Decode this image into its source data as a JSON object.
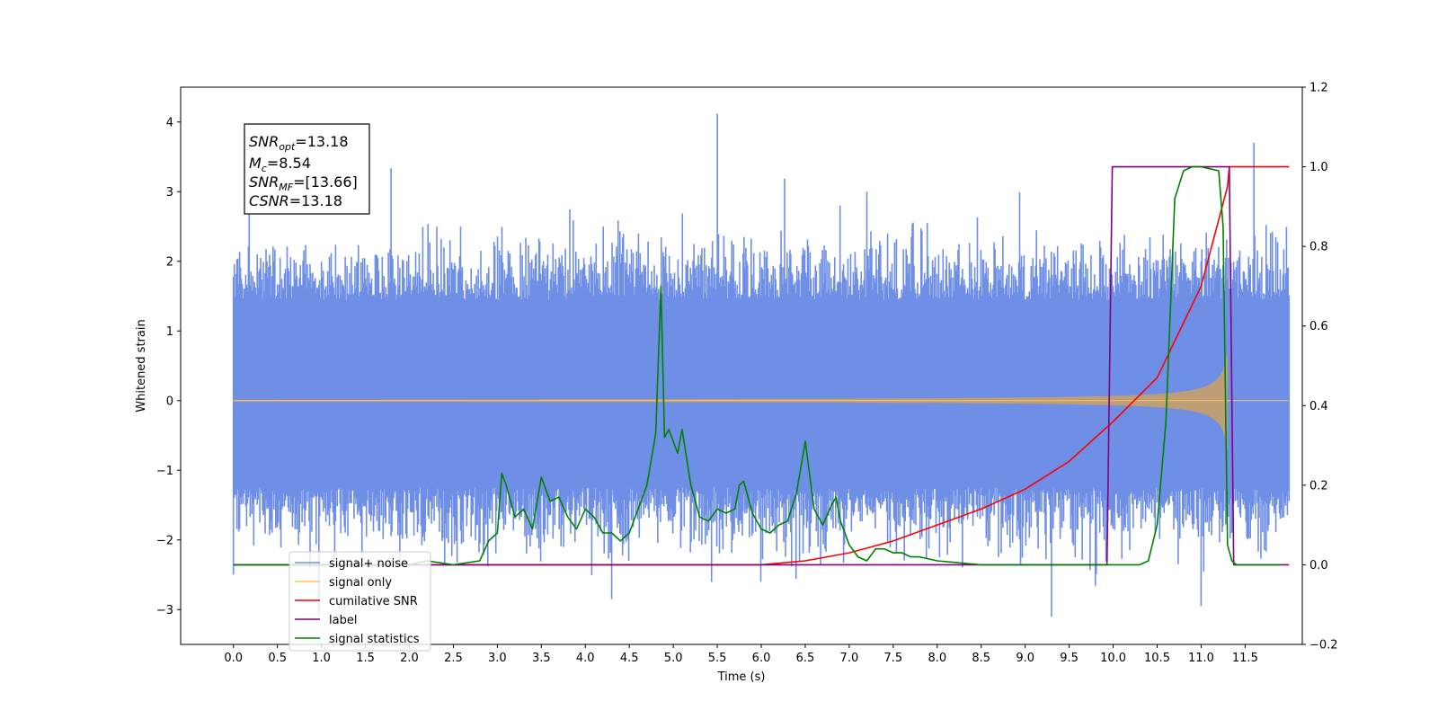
{
  "chart_data": {
    "type": "line",
    "xlabel": "Time (s)",
    "ylabel": "Whitened strain",
    "xlim": [
      -0.6,
      12.15
    ],
    "ylim": [
      -3.5,
      4.5
    ],
    "y2lim": [
      -0.2,
      1.2
    ],
    "x_ticks": [
      "0.0",
      "0.5",
      "1.0",
      "1.5",
      "2.0",
      "2.5",
      "3.0",
      "3.5",
      "4.0",
      "4.5",
      "5.0",
      "5.5",
      "6.0",
      "6.5",
      "7.0",
      "7.5",
      "8.0",
      "8.5",
      "9.0",
      "9.5",
      "10.0",
      "10.5",
      "11.0",
      "11.5"
    ],
    "y_ticks": [
      "4",
      "3",
      "2",
      "1",
      "0",
      "−1",
      "−2",
      "−3"
    ],
    "y2_ticks": [
      "1.2",
      "1.0",
      "0.8",
      "0.6",
      "0.4",
      "0.2",
      "0.0",
      "−0.2"
    ],
    "annotation": {
      "lines": [
        {
          "base": "SNR",
          "sub": "opt",
          "value": "=13.18"
        },
        {
          "base": "M",
          "sub": "c",
          "value": "=8.54"
        },
        {
          "base": "SNR",
          "sub": "MF",
          "value": "=[13.66]"
        },
        {
          "base": "CSNR",
          "sub": "",
          "value": "=13.18"
        }
      ]
    },
    "legend_position": "lower-left",
    "series": [
      {
        "name": "signal+ noise",
        "color": "#6f8fe6",
        "axis": "left",
        "description_values": {
          "x_start": 0.0,
          "x_end": 12.0,
          "spikes": [
            [
              0.18,
              2.7
            ],
            [
              5.5,
              4.12
            ],
            [
              7.2,
              3.0
            ],
            [
              11.6,
              3.7
            ],
            [
              9.3,
              -3.1
            ],
            [
              11.0,
              -2.95
            ],
            [
              4.3,
              -2.85
            ]
          ]
        }
      },
      {
        "name": "signal only",
        "color": "#ffbf60",
        "axis": "left",
        "chirp": {
          "x_start": 0.0,
          "x_end": 11.3,
          "amplitude_end": 0.7
        }
      },
      {
        "name": "cumilative SNR",
        "color": "#ff0000",
        "axis": "right",
        "x": [
          0.0,
          6.0,
          6.5,
          7.0,
          7.5,
          8.0,
          8.5,
          9.0,
          9.5,
          10.0,
          10.5,
          11.0,
          11.3,
          11.32,
          12.0
        ],
        "y": [
          0.0,
          0.0,
          0.01,
          0.03,
          0.06,
          0.1,
          0.14,
          0.19,
          0.26,
          0.36,
          0.47,
          0.7,
          0.95,
          1.0,
          1.0
        ]
      },
      {
        "name": "label",
        "color": "#800080",
        "axis": "right",
        "x": [
          0.0,
          9.93,
          9.99,
          11.32,
          11.37,
          12.0
        ],
        "y": [
          0.0,
          0.0,
          1.0,
          1.0,
          0.0,
          0.0
        ]
      },
      {
        "name": "signal statistics",
        "color": "#008000",
        "axis": "right",
        "x": [
          0.0,
          2.0,
          2.2,
          2.5,
          2.8,
          2.9,
          3.0,
          3.05,
          3.1,
          3.2,
          3.3,
          3.4,
          3.5,
          3.6,
          3.7,
          3.8,
          3.9,
          4.0,
          4.1,
          4.2,
          4.3,
          4.4,
          4.5,
          4.6,
          4.7,
          4.8,
          4.86,
          4.9,
          4.95,
          5.05,
          5.1,
          5.2,
          5.3,
          5.4,
          5.5,
          5.6,
          5.7,
          5.75,
          5.8,
          5.9,
          6.0,
          6.1,
          6.2,
          6.3,
          6.4,
          6.5,
          6.6,
          6.7,
          6.8,
          6.85,
          6.9,
          7.0,
          7.1,
          7.2,
          7.3,
          7.4,
          7.5,
          7.6,
          7.7,
          7.8,
          8.0,
          8.5,
          9.0,
          10.0,
          10.3,
          10.4,
          10.5,
          10.6,
          10.7,
          10.8,
          10.9,
          11.0,
          11.1,
          11.2,
          11.25,
          11.3,
          11.35,
          11.4,
          11.5,
          11.6,
          11.9
        ],
        "y": [
          0.0,
          0.0,
          0.01,
          0.0,
          0.01,
          0.06,
          0.08,
          0.23,
          0.2,
          0.12,
          0.14,
          0.09,
          0.22,
          0.16,
          0.17,
          0.12,
          0.09,
          0.14,
          0.12,
          0.08,
          0.08,
          0.06,
          0.08,
          0.14,
          0.2,
          0.33,
          0.7,
          0.32,
          0.34,
          0.28,
          0.34,
          0.2,
          0.12,
          0.11,
          0.14,
          0.13,
          0.14,
          0.2,
          0.21,
          0.13,
          0.09,
          0.08,
          0.1,
          0.11,
          0.18,
          0.31,
          0.14,
          0.1,
          0.15,
          0.17,
          0.11,
          0.05,
          0.02,
          0.01,
          0.04,
          0.04,
          0.03,
          0.03,
          0.02,
          0.02,
          0.01,
          0.0,
          0.0,
          0.0,
          0.0,
          0.01,
          0.1,
          0.36,
          0.92,
          0.99,
          1.0,
          1.0,
          0.995,
          0.99,
          0.85,
          0.05,
          0.01,
          0.0,
          0.0,
          0.0,
          0.0
        ]
      }
    ]
  }
}
